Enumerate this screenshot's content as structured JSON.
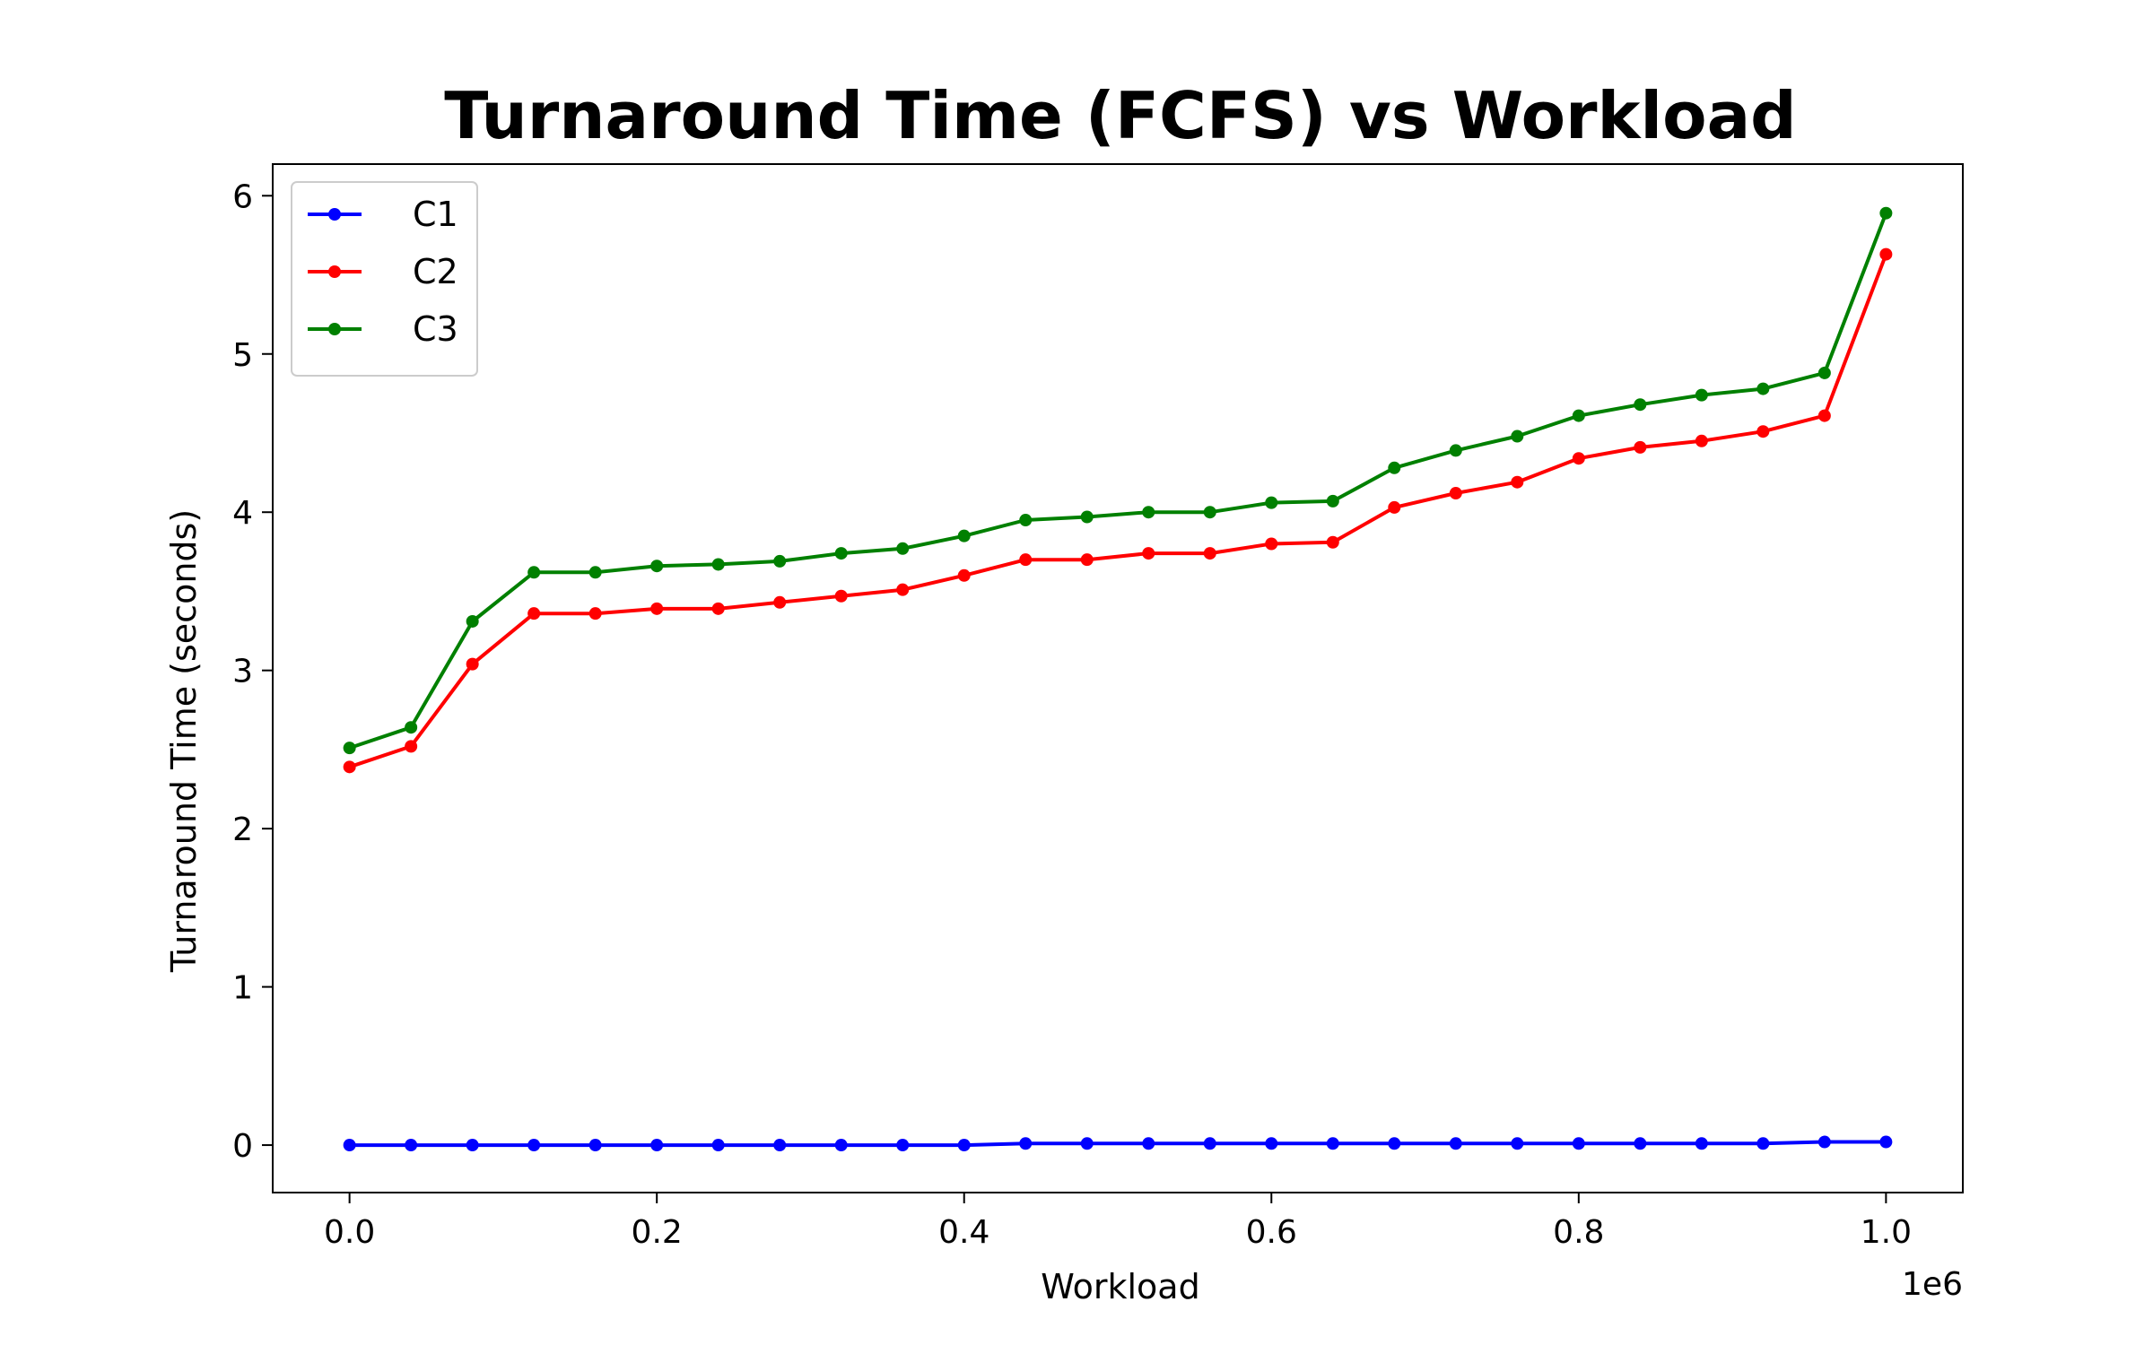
{
  "chart_data": {
    "type": "line",
    "title": "Turnaround Time (FCFS) vs Workload",
    "xlabel": "Workload",
    "ylabel": "Turnaround Time (seconds)",
    "x_offset_label": "1e6",
    "x_tick_labels": [
      "0.0",
      "0.2",
      "0.4",
      "0.6",
      "0.8",
      "1.0"
    ],
    "y_tick_labels": [
      "0",
      "1",
      "2",
      "3",
      "4",
      "5",
      "6"
    ],
    "xlim": [
      -0.05,
      1.05
    ],
    "ylim": [
      -0.3,
      6.2
    ],
    "legend_position": "top-left",
    "x": [
      0.0,
      0.04,
      0.08,
      0.12,
      0.16,
      0.2,
      0.24,
      0.28,
      0.32,
      0.36,
      0.4,
      0.44,
      0.48,
      0.52,
      0.56,
      0.6,
      0.64,
      0.68,
      0.72,
      0.76,
      0.8,
      0.84,
      0.88,
      0.92,
      0.96,
      1.0
    ],
    "series": [
      {
        "name": "C1",
        "color": "#0000ff",
        "values": [
          0.0,
          0.0,
          0.0,
          0.0,
          0.0,
          0.0,
          0.0,
          0.0,
          0.0,
          0.0,
          0.0,
          0.01,
          0.01,
          0.01,
          0.01,
          0.01,
          0.01,
          0.01,
          0.01,
          0.01,
          0.01,
          0.01,
          0.01,
          0.01,
          0.02,
          0.02
        ]
      },
      {
        "name": "C2",
        "color": "#ff0000",
        "values": [
          2.39,
          2.52,
          3.04,
          3.36,
          3.36,
          3.39,
          3.39,
          3.43,
          3.47,
          3.51,
          3.6,
          3.7,
          3.7,
          3.74,
          3.74,
          3.8,
          3.81,
          4.03,
          4.12,
          4.19,
          4.34,
          4.41,
          4.45,
          4.51,
          4.61,
          5.63
        ]
      },
      {
        "name": "C3",
        "color": "#008000",
        "values": [
          2.51,
          2.64,
          3.31,
          3.62,
          3.62,
          3.66,
          3.67,
          3.69,
          3.74,
          3.77,
          3.85,
          3.95,
          3.97,
          4.0,
          4.0,
          4.06,
          4.07,
          4.28,
          4.39,
          4.48,
          4.61,
          4.68,
          4.74,
          4.78,
          4.88,
          5.89
        ]
      }
    ]
  }
}
